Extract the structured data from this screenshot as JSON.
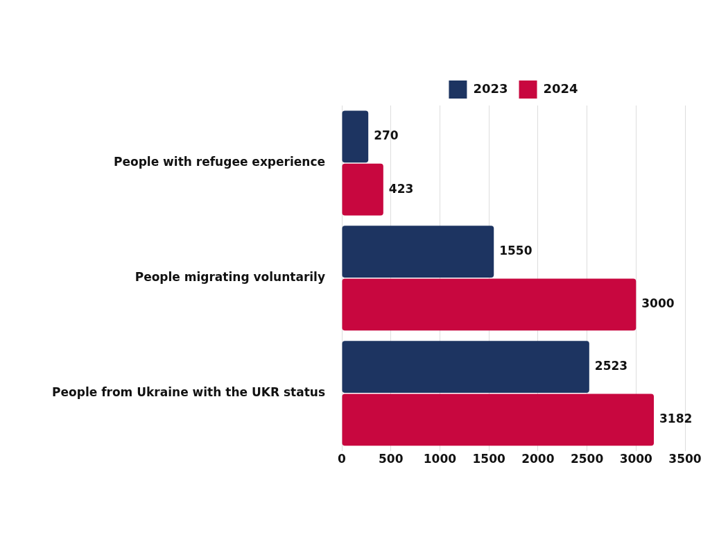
{
  "chart_data": {
    "type": "bar",
    "orientation": "horizontal",
    "categories": [
      "People with refugee experience",
      "People migrating voluntarily",
      "People from Ukraine with the UKR status"
    ],
    "series": [
      {
        "name": "2023",
        "color": "#1d3461",
        "values": [
          270,
          1550,
          2523
        ]
      },
      {
        "name": "2024",
        "color": "#c8073f",
        "values": [
          423,
          3000,
          3182
        ]
      }
    ],
    "xlim": [
      0,
      3500
    ],
    "xticks": [
      0,
      500,
      1000,
      1500,
      2000,
      2500,
      3000,
      3500
    ],
    "grid": true,
    "legend": "top",
    "data_labels": true
  }
}
